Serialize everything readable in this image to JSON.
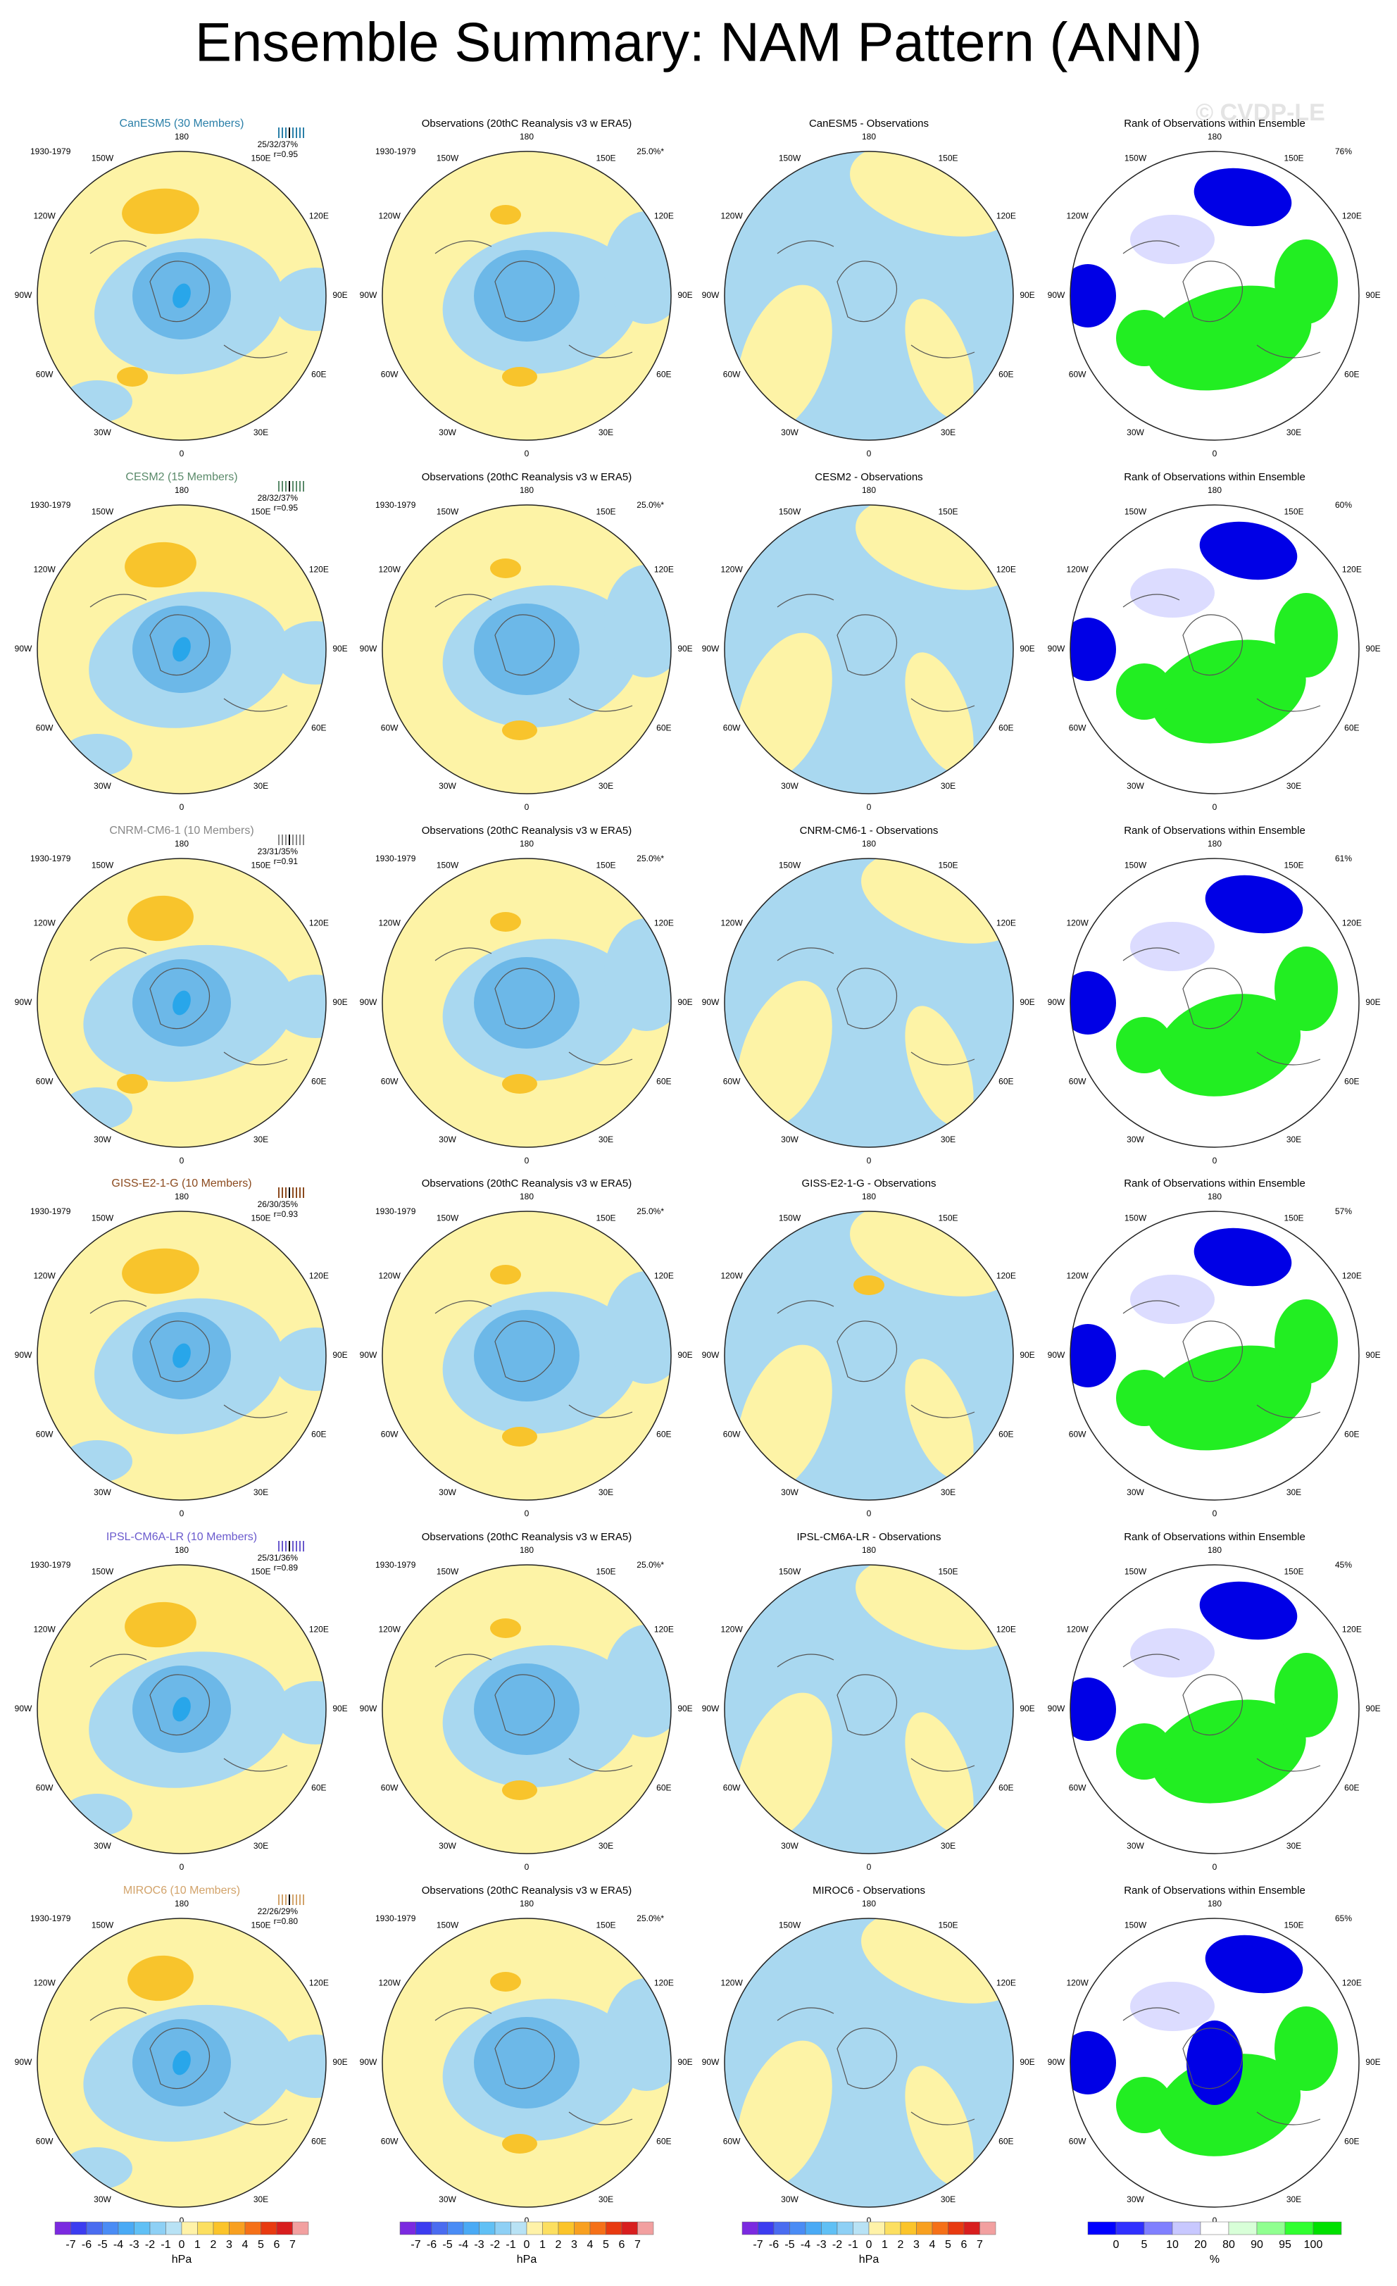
{
  "title": "Ensemble Summary: NAM Pattern (ANN)",
  "watermark": "© CVDP-LE",
  "lon_labels": [
    "180",
    "150E",
    "120E",
    "90E",
    "60E",
    "30E",
    "0",
    "30W",
    "60W",
    "90W",
    "120W",
    "150W"
  ],
  "rows": [
    {
      "model_title": "CanESM5 (30 Members)",
      "color": "#2a7fa8",
      "period": "1930-1979",
      "stats": "25/32/37%",
      "r": "r=0.95",
      "obs_title": "Observations (20thC Reanalysis v3 w ERA5)",
      "obs_pct": "25.0%*",
      "diff_title": "CanESM5 - Observations",
      "rank_title": "Rank of Observations within Ensemble",
      "rank_pct": "76%"
    },
    {
      "model_title": "CESM2 (15 Members)",
      "color": "#5a8a6a",
      "period": "1930-1979",
      "stats": "28/32/37%",
      "r": "r=0.95",
      "obs_title": "Observations (20thC Reanalysis v3 w ERA5)",
      "obs_pct": "25.0%*",
      "diff_title": "CESM2 - Observations",
      "rank_title": "Rank of Observations within Ensemble",
      "rank_pct": "60%"
    },
    {
      "model_title": "CNRM-CM6-1 (10 Members)",
      "color": "#888888",
      "period": "1930-1979",
      "stats": "23/31/35%",
      "r": "r=0.91",
      "obs_title": "Observations (20thC Reanalysis v3 w ERA5)",
      "obs_pct": "25.0%*",
      "diff_title": "CNRM-CM6-1 - Observations",
      "rank_title": "Rank of Observations within Ensemble",
      "rank_pct": "61%"
    },
    {
      "model_title": "GISS-E2-1-G (10 Members)",
      "color": "#8b4a1e",
      "period": "1930-1979",
      "stats": "26/30/35%",
      "r": "r=0.93",
      "obs_title": "Observations (20thC Reanalysis v3 w ERA5)",
      "obs_pct": "25.0%*",
      "diff_title": "GISS-E2-1-G - Observations",
      "rank_title": "Rank of Observations within Ensemble",
      "rank_pct": "57%"
    },
    {
      "model_title": "IPSL-CM6A-LR (10 Members)",
      "color": "#6a5acd",
      "period": "1930-1979",
      "stats": "25/31/36%",
      "r": "r=0.89",
      "obs_title": "Observations (20thC Reanalysis v3 w ERA5)",
      "obs_pct": "25.0%*",
      "diff_title": "IPSL-CM6A-LR - Observations",
      "rank_title": "Rank of Observations within Ensemble",
      "rank_pct": "45%"
    },
    {
      "model_title": "MIROC6 (10 Members)",
      "color": "#d2a36a",
      "period": "1930-1979",
      "stats": "22/26/29%",
      "r": "r=0.80",
      "obs_title": "Observations (20thC Reanalysis v3 w ERA5)",
      "obs_pct": "25.0%*",
      "diff_title": "MIROC6 - Observations",
      "rank_title": "Rank of Observations within Ensemble",
      "rank_pct": "65%"
    }
  ],
  "hpa_colorbar": {
    "labels": [
      "-7",
      "-6",
      "-5",
      "-4",
      "-3",
      "-2",
      "-1",
      "0",
      "1",
      "2",
      "3",
      "4",
      "5",
      "6",
      "7"
    ],
    "unit": "hPa"
  },
  "rank_colorbar": {
    "labels": [
      "0",
      "5",
      "10",
      "20",
      "80",
      "90",
      "95",
      "100"
    ],
    "unit": "%"
  }
}
